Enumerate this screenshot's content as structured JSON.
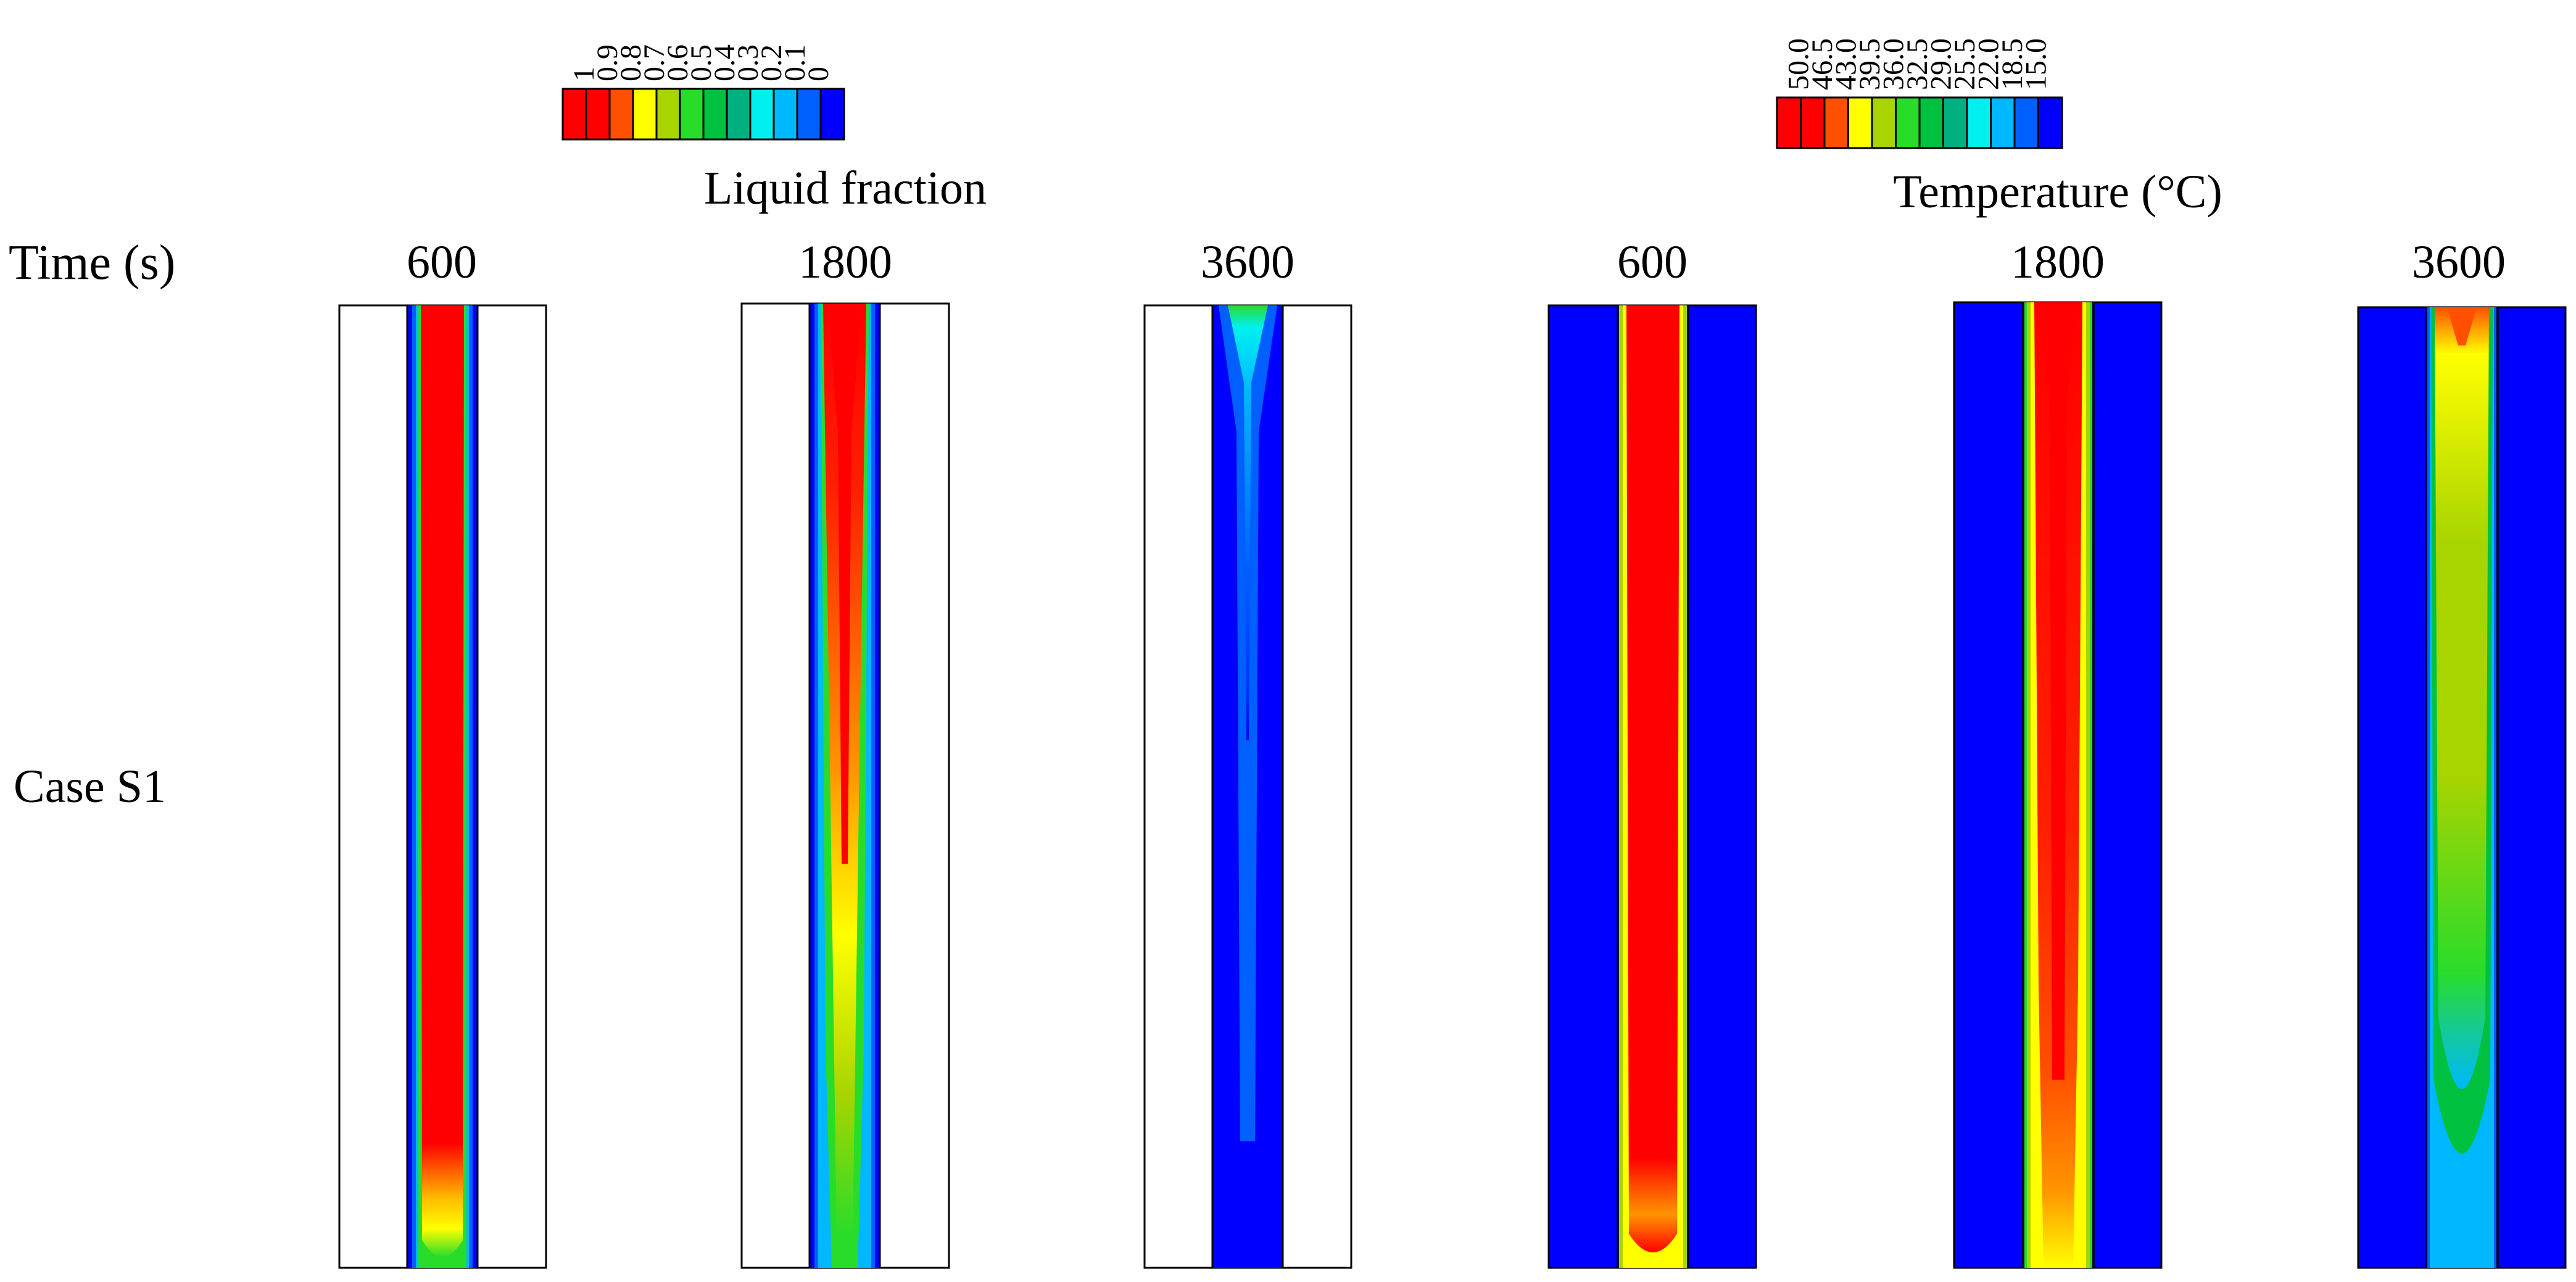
{
  "figure": {
    "row_header": "Time (s)",
    "row_label": "Case S1"
  },
  "colors": {
    "background": "#ffffff",
    "outline": "#000000",
    "red": "#ff0000",
    "orange_red": "#ff5000",
    "orange": "#ff9400",
    "yellow": "#ffff00",
    "yellow_green": "#a8d400",
    "green": "#2adc2a",
    "mid_green": "#00c040",
    "teal": "#00b080",
    "cyan": "#00f0f0",
    "sky": "#00b8ff",
    "light_blue": "#0060ff",
    "blue": "#0000ff",
    "dark_line": "#000060"
  },
  "legends": [
    {
      "id": "liquid_fraction",
      "title": "Liquid fraction",
      "ticks": [
        "1",
        "0.9",
        "0.8",
        "0.7",
        "0.6",
        "0.5",
        "0.4",
        "0.3",
        "0.2",
        "0.1",
        "0"
      ],
      "swatches": [
        "#ff0000",
        "#ff0000",
        "#ff5000",
        "#ffff00",
        "#a8d400",
        "#2adc2a",
        "#00c040",
        "#00b080",
        "#00f0f0",
        "#00b8ff",
        "#0060ff",
        "#0000ff"
      ]
    },
    {
      "id": "temperature",
      "title": "Temperature (°C)",
      "ticks": [
        "50.0",
        "46.5",
        "43.0",
        "39.5",
        "36.0",
        "32.5",
        "29.0",
        "25.5",
        "22.0",
        "18.5",
        "15.0"
      ],
      "swatches": [
        "#ff0000",
        "#ff0000",
        "#ff5000",
        "#ffff00",
        "#a8d400",
        "#2adc2a",
        "#00c040",
        "#00b080",
        "#00f0f0",
        "#00b8ff",
        "#0060ff",
        "#0000ff"
      ]
    }
  ],
  "panels": [
    {
      "id": "lf_600",
      "field": "liquid_fraction",
      "time": "600"
    },
    {
      "id": "lf_1800",
      "field": "liquid_fraction",
      "time": "1800"
    },
    {
      "id": "lf_3600",
      "field": "liquid_fraction",
      "time": "3600"
    },
    {
      "id": "t_600",
      "field": "temperature",
      "time": "600"
    },
    {
      "id": "t_1800",
      "field": "temperature",
      "time": "1800"
    },
    {
      "id": "t_3600",
      "field": "temperature",
      "time": "3600"
    }
  ]
}
